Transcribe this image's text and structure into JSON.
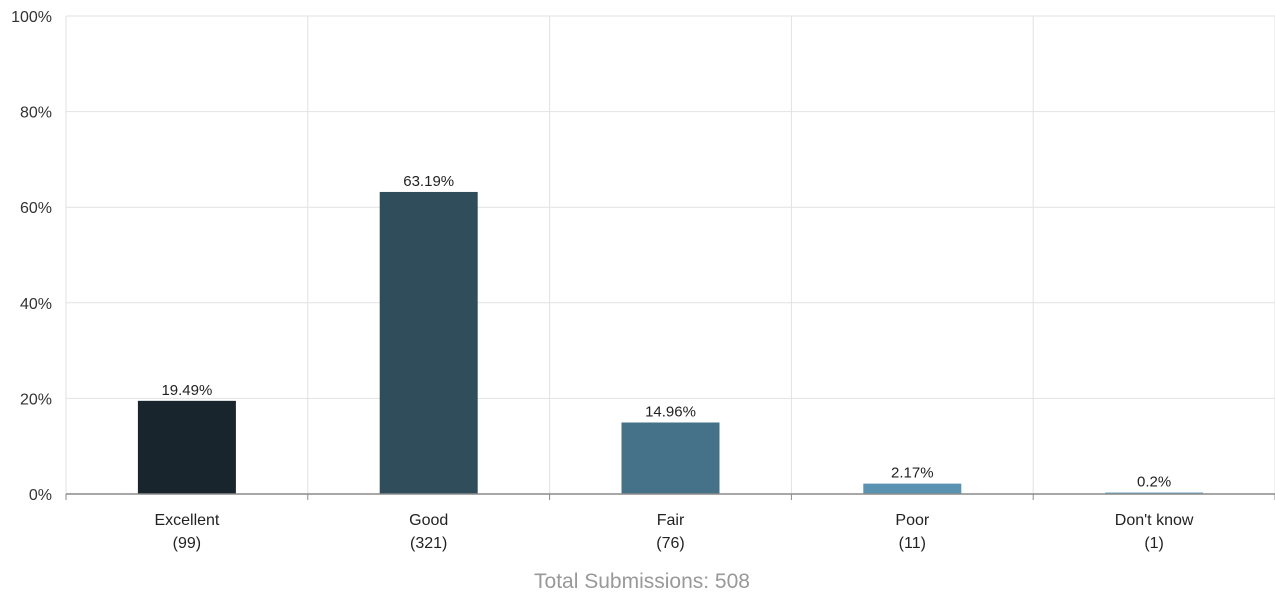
{
  "chart_data": {
    "type": "bar",
    "categories": [
      "Excellent",
      "Good",
      "Fair",
      "Poor",
      "Don't know"
    ],
    "counts": [
      "(99)",
      "(321)",
      "(76)",
      "(11)",
      "(1)"
    ],
    "values": [
      19.49,
      63.19,
      14.96,
      2.17,
      0.2
    ],
    "value_labels": [
      "19.49%",
      "63.19%",
      "14.96%",
      "2.17%",
      "0.2%"
    ],
    "bar_colors": [
      "#18252c",
      "#2f4d5b",
      "#467289",
      "#5a93b1",
      "#6aa7c6"
    ],
    "ylim": [
      0,
      100
    ],
    "y_ticks": [
      0,
      20,
      40,
      60,
      80,
      100
    ],
    "y_tick_labels": [
      "0%",
      "20%",
      "40%",
      "60%",
      "80%",
      "100%"
    ],
    "grid": true,
    "total_label": "Total Submissions: 508"
  }
}
